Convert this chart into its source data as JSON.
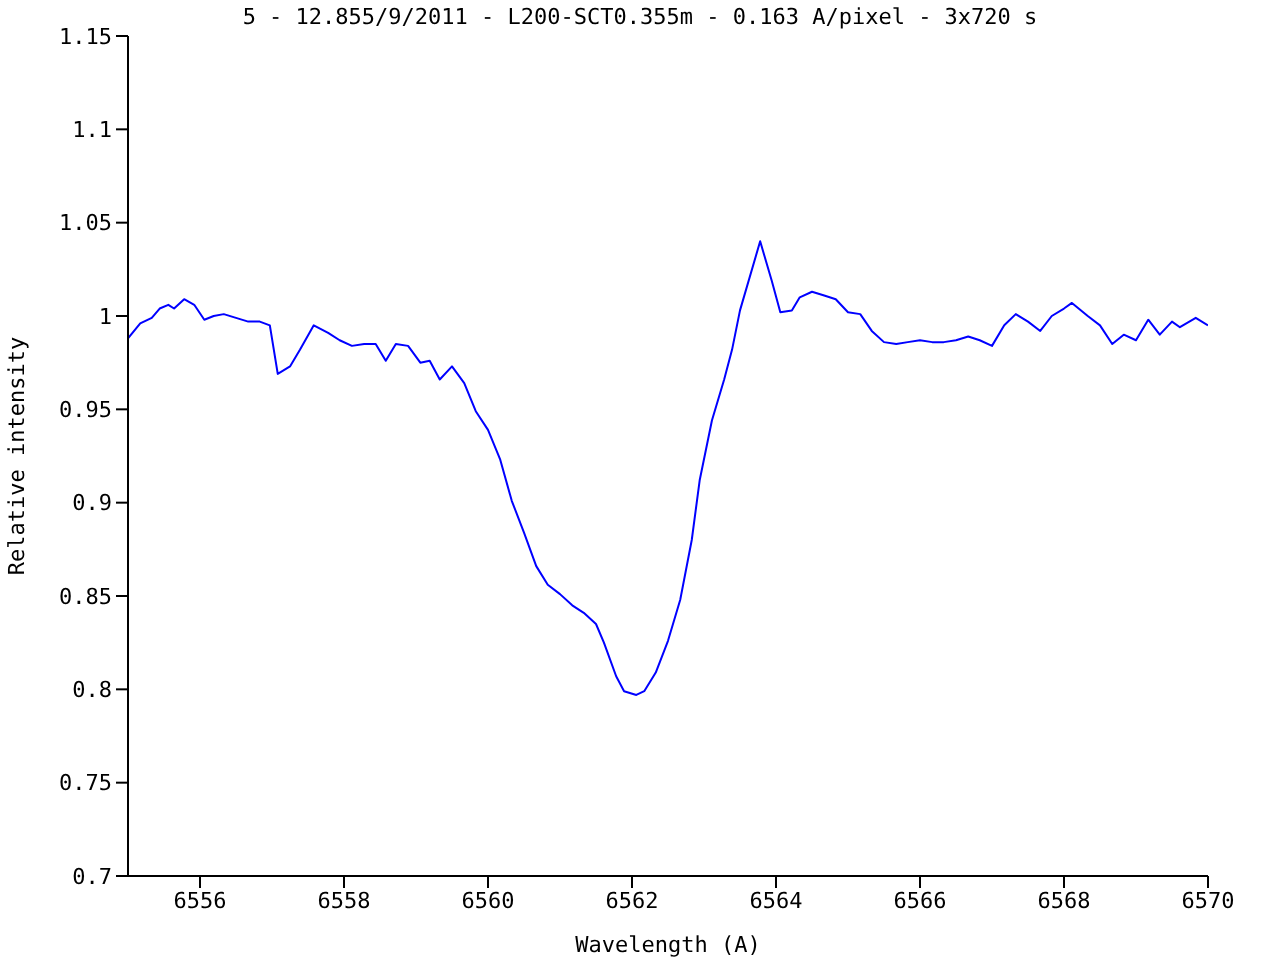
{
  "chart_data": {
    "type": "line",
    "title": "5 - 12.855/9/2011 - L200-SCT0.355m - 0.163 A/pixel - 3x720 s",
    "xlabel": "Wavelength (A)",
    "ylabel": "Relative intensity",
    "xlim": [
      6555,
      6570
    ],
    "xticks": [
      6556,
      6558,
      6560,
      6562,
      6564,
      6566,
      6568,
      6570
    ],
    "ylim": [
      0.7,
      1.15
    ],
    "yticks": [
      0.7,
      0.75,
      0.8,
      0.85,
      0.9,
      0.95,
      1,
      1.05,
      1.1,
      1.15
    ],
    "x": [
      6555,
      6555.17,
      6555.33,
      6555.44,
      6555.56,
      6555.64,
      6555.78,
      6555.92,
      6556.06,
      6556.19,
      6556.33,
      6556.5,
      6556.67,
      6556.83,
      6556.97,
      6557.08,
      6557.25,
      6557.39,
      6557.58,
      6557.78,
      6557.94,
      6558.11,
      6558.28,
      6558.44,
      6558.58,
      6558.72,
      6558.89,
      6559.06,
      6559.19,
      6559.33,
      6559.5,
      6559.67,
      6559.83,
      6560,
      6560.17,
      6560.33,
      6560.5,
      6560.67,
      6560.83,
      6561,
      6561.17,
      6561.33,
      6561.5,
      6561.61,
      6561.78,
      6561.89,
      6562.06,
      6562.17,
      6562.33,
      6562.5,
      6562.67,
      6562.83,
      6562.94,
      6563.11,
      6563.28,
      6563.39,
      6563.5,
      6563.78,
      6563.94,
      6564.06,
      6564.22,
      6564.33,
      6564.5,
      6564.67,
      6564.83,
      6565,
      6565.17,
      6565.33,
      6565.5,
      6565.67,
      6565.83,
      6566,
      6566.17,
      6566.33,
      6566.5,
      6566.67,
      6566.83,
      6567,
      6567.17,
      6567.33,
      6567.5,
      6567.67,
      6567.83,
      6568,
      6568.11,
      6568.33,
      6568.5,
      6568.67,
      6568.83,
      6569,
      6569.17,
      6569.33,
      6569.5,
      6569.61,
      6569.83,
      6570
    ],
    "series": [
      {
        "color": "#0000ff",
        "values": [
          0.988,
          0.996,
          0.999,
          1.004,
          1.006,
          1.004,
          1.009,
          1.006,
          0.998,
          1,
          1.001,
          0.999,
          0.997,
          0.997,
          0.995,
          0.969,
          0.973,
          0.982,
          0.995,
          0.991,
          0.987,
          0.984,
          0.985,
          0.985,
          0.976,
          0.985,
          0.984,
          0.975,
          0.976,
          0.966,
          0.973,
          0.964,
          0.949,
          0.939,
          0.923,
          0.901,
          0.884,
          0.866,
          0.856,
          0.851,
          0.845,
          0.841,
          0.835,
          0.825,
          0.807,
          0.799,
          0.797,
          0.799,
          0.809,
          0.826,
          0.848,
          0.88,
          0.912,
          0.944,
          0.966,
          0.982,
          1.003,
          1.04,
          1.019,
          1.002,
          1.003,
          1.01,
          1.013,
          1.011,
          1.009,
          1.002,
          1.001,
          0.992,
          0.986,
          0.985,
          0.986,
          0.987,
          0.986,
          0.986,
          0.987,
          0.989,
          0.987,
          0.984,
          0.995,
          1.001,
          0.997,
          0.992,
          1,
          1.004,
          1.007,
          1,
          0.995,
          0.985,
          0.99,
          0.987,
          0.998,
          0.99,
          0.997,
          0.994,
          0.999,
          0.995
        ]
      }
    ]
  }
}
